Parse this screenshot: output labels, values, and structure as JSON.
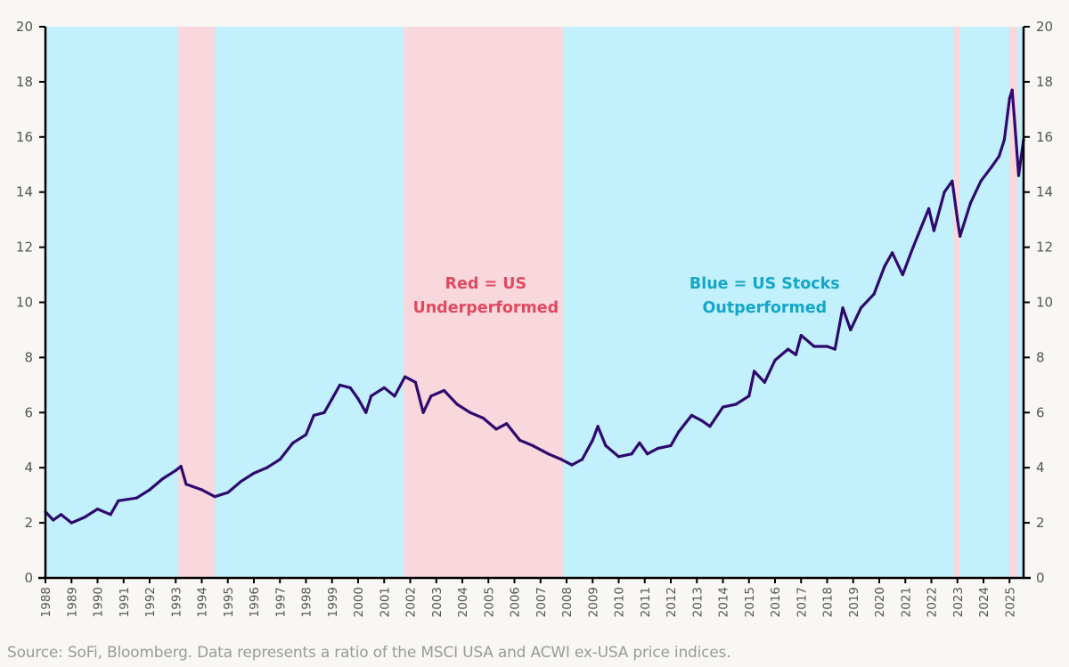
{
  "chart_data": {
    "type": "line",
    "title": "",
    "xlabel": "",
    "ylabel": "",
    "ylim": [
      0,
      20
    ],
    "xlim": [
      1988,
      2025.54
    ],
    "y_ticks": [
      0,
      2,
      4,
      6,
      8,
      10,
      12,
      14,
      16,
      18,
      20
    ],
    "x_ticks": [
      "1988",
      "1989",
      "1990",
      "1991",
      "1992",
      "1993",
      "1994",
      "1995",
      "1996",
      "1997",
      "1998",
      "1999",
      "2000",
      "2001",
      "2002",
      "2003",
      "2004",
      "2005",
      "2006",
      "2007",
      "2008",
      "2009",
      "2010",
      "2011",
      "2012",
      "2013",
      "2014",
      "2015",
      "2016",
      "2017",
      "2018",
      "2019",
      "2020",
      "2021",
      "2022",
      "2023",
      "2024",
      "2025"
    ],
    "grid": false,
    "dual_y_axis": true,
    "series": [
      {
        "name": "MSCI USA / ACWI ex-USA price ratio",
        "color": "#2e0a6e",
        "points": [
          [
            1988.0,
            2.4
          ],
          [
            1988.3,
            2.1
          ],
          [
            1988.6,
            2.3
          ],
          [
            1989.0,
            2.0
          ],
          [
            1989.5,
            2.2
          ],
          [
            1990.0,
            2.5
          ],
          [
            1990.5,
            2.3
          ],
          [
            1990.8,
            2.8
          ],
          [
            1991.5,
            2.9
          ],
          [
            1992.0,
            3.2
          ],
          [
            1992.5,
            3.6
          ],
          [
            1993.0,
            3.9
          ],
          [
            1993.2,
            4.05
          ],
          [
            1993.4,
            3.4
          ],
          [
            1994.0,
            3.2
          ],
          [
            1994.5,
            2.95
          ],
          [
            1995.0,
            3.1
          ],
          [
            1995.5,
            3.5
          ],
          [
            1996.0,
            3.8
          ],
          [
            1996.5,
            4.0
          ],
          [
            1997.0,
            4.3
          ],
          [
            1997.5,
            4.9
          ],
          [
            1998.0,
            5.2
          ],
          [
            1998.3,
            5.9
          ],
          [
            1998.7,
            6.0
          ],
          [
            1999.0,
            6.5
          ],
          [
            1999.3,
            7.0
          ],
          [
            1999.7,
            6.9
          ],
          [
            2000.0,
            6.5
          ],
          [
            2000.3,
            6.0
          ],
          [
            2000.5,
            6.6
          ],
          [
            2001.0,
            6.9
          ],
          [
            2001.4,
            6.6
          ],
          [
            2001.8,
            7.3
          ],
          [
            2002.2,
            7.1
          ],
          [
            2002.5,
            6.0
          ],
          [
            2002.8,
            6.6
          ],
          [
            2003.3,
            6.8
          ],
          [
            2003.8,
            6.3
          ],
          [
            2004.3,
            6.0
          ],
          [
            2004.8,
            5.8
          ],
          [
            2005.3,
            5.4
          ],
          [
            2005.7,
            5.6
          ],
          [
            2006.2,
            5.0
          ],
          [
            2006.7,
            4.8
          ],
          [
            2007.3,
            4.5
          ],
          [
            2007.8,
            4.3
          ],
          [
            2008.2,
            4.1
          ],
          [
            2008.6,
            4.3
          ],
          [
            2009.0,
            5.0
          ],
          [
            2009.2,
            5.5
          ],
          [
            2009.5,
            4.8
          ],
          [
            2010.0,
            4.4
          ],
          [
            2010.5,
            4.5
          ],
          [
            2010.8,
            4.9
          ],
          [
            2011.1,
            4.5
          ],
          [
            2011.5,
            4.7
          ],
          [
            2012.0,
            4.8
          ],
          [
            2012.3,
            5.3
          ],
          [
            2012.8,
            5.9
          ],
          [
            2013.2,
            5.7
          ],
          [
            2013.5,
            5.5
          ],
          [
            2014.0,
            6.2
          ],
          [
            2014.5,
            6.3
          ],
          [
            2015.0,
            6.6
          ],
          [
            2015.2,
            7.5
          ],
          [
            2015.6,
            7.1
          ],
          [
            2016.0,
            7.9
          ],
          [
            2016.5,
            8.3
          ],
          [
            2016.8,
            8.1
          ],
          [
            2017.0,
            8.8
          ],
          [
            2017.5,
            8.4
          ],
          [
            2018.0,
            8.4
          ],
          [
            2018.3,
            8.3
          ],
          [
            2018.6,
            9.8
          ],
          [
            2018.9,
            9.0
          ],
          [
            2019.3,
            9.8
          ],
          [
            2019.8,
            10.3
          ],
          [
            2020.2,
            11.3
          ],
          [
            2020.5,
            11.8
          ],
          [
            2020.9,
            11.0
          ],
          [
            2021.3,
            12.0
          ],
          [
            2021.6,
            12.7
          ],
          [
            2021.9,
            13.4
          ],
          [
            2022.1,
            12.6
          ],
          [
            2022.5,
            14.0
          ],
          [
            2022.8,
            14.4
          ],
          [
            2023.0,
            13.0
          ],
          [
            2023.1,
            12.4
          ],
          [
            2023.5,
            13.6
          ],
          [
            2023.9,
            14.4
          ],
          [
            2024.3,
            14.9
          ],
          [
            2024.6,
            15.3
          ],
          [
            2024.8,
            15.9
          ],
          [
            2025.0,
            17.4
          ],
          [
            2025.1,
            17.7
          ],
          [
            2025.2,
            16.5
          ],
          [
            2025.35,
            14.6
          ],
          [
            2025.45,
            15.3
          ],
          [
            2025.54,
            15.9
          ]
        ]
      }
    ],
    "background_bands": {
      "outperform_color": "#c2f0fc",
      "underperform_color": "#f8d7dd",
      "underperform_periods": [
        [
          1993.1,
          1994.5
        ],
        [
          2001.74,
          2007.86
        ],
        [
          2022.87,
          2023.08
        ],
        [
          2025.0,
          2025.3
        ]
      ]
    },
    "annotations": [
      {
        "id": "red",
        "lines": [
          "Red = US",
          "Underperformed"
        ],
        "color": "#e04a5f",
        "x": 2004.9,
        "y": 10.5
      },
      {
        "id": "blue",
        "lines": [
          "Blue = US Stocks",
          "Outperformed"
        ],
        "color": "#14a6c8",
        "x": 2015.6,
        "y": 10.5
      }
    ]
  },
  "source_note": "Source: SoFi, Bloomberg. Data represents a ratio of the MSCI USA and ACWI ex-USA price indices."
}
